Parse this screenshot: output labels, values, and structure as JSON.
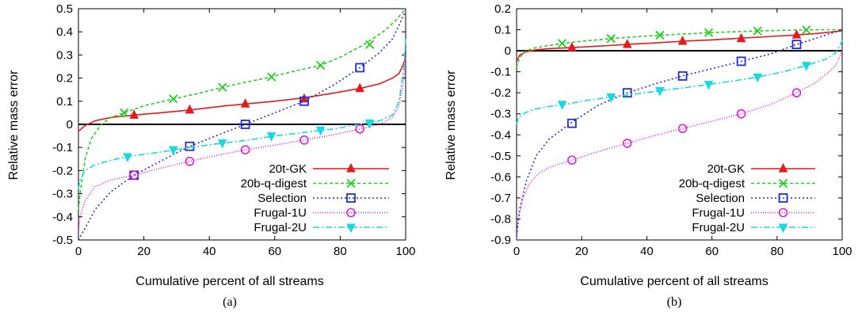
{
  "chart_data": [
    {
      "type": "line",
      "caption": "(a)",
      "xlabel": "Cumulative percent of all streams",
      "ylabel": "Relative mass error",
      "xlim": [
        0,
        100
      ],
      "ylim": [
        -0.5,
        0.5
      ],
      "xticks": [
        0,
        20,
        40,
        60,
        80,
        100
      ],
      "yticks": [
        -0.5,
        -0.4,
        -0.3,
        -0.2,
        -0.1,
        0,
        0.1,
        0.2,
        0.3,
        0.4,
        0.5
      ],
      "ytick_labels": [
        "-0.5",
        "-0.4",
        "-0.3",
        "-0.2",
        "-0.1",
        "0",
        "0.1",
        "0.2",
        "0.3",
        "0.4",
        "0.5"
      ],
      "zero_line": true,
      "legend_position": "bottom-right",
      "series": [
        {
          "name": "20t-GK",
          "color": "#e41a1c",
          "dash": "",
          "marker": "triangle-up",
          "x": [
            0,
            2,
            5,
            10,
            17,
            25,
            34,
            45,
            51,
            60,
            69,
            78,
            86,
            92,
            96,
            98,
            99.3,
            100
          ],
          "y": [
            -0.03,
            -0.005,
            0.015,
            0.03,
            0.04,
            0.05,
            0.062,
            0.08,
            0.088,
            0.1,
            0.115,
            0.135,
            0.155,
            0.175,
            0.2,
            0.22,
            0.26,
            0.29
          ],
          "marker_x": [
            17,
            34,
            51,
            69,
            86
          ],
          "marker_y": [
            0.04,
            0.062,
            0.088,
            0.11,
            0.155
          ]
        },
        {
          "name": "20b-q-digest",
          "color": "#1fd11f",
          "dash": "4,3",
          "marker": "x",
          "x": [
            0,
            0.5,
            2,
            4,
            7,
            10,
            14,
            20,
            29,
            37,
            44,
            52,
            59,
            66,
            74,
            80,
            86,
            90,
            94,
            97,
            100
          ],
          "y": [
            -0.37,
            -0.3,
            -0.15,
            -0.06,
            0.0,
            0.03,
            0.05,
            0.08,
            0.11,
            0.135,
            0.16,
            0.185,
            0.205,
            0.23,
            0.255,
            0.29,
            0.335,
            0.37,
            0.41,
            0.45,
            0.5
          ],
          "marker_x": [
            14,
            29,
            44,
            59,
            74,
            89
          ],
          "marker_y": [
            0.05,
            0.11,
            0.16,
            0.205,
            0.255,
            0.345
          ]
        },
        {
          "name": "Selection",
          "color": "#1f2fd1",
          "dash": "2,3",
          "marker": "square",
          "x": [
            0,
            2,
            5,
            10,
            17,
            25,
            34,
            42,
            51,
            60,
            69,
            78,
            86,
            92,
            96,
            100
          ],
          "y": [
            -0.5,
            -0.45,
            -0.37,
            -0.29,
            -0.22,
            -0.16,
            -0.095,
            -0.05,
            0.0,
            0.05,
            0.1,
            0.17,
            0.245,
            0.31,
            0.37,
            0.49
          ],
          "marker_x": [
            17,
            34,
            51,
            69,
            86
          ],
          "marker_y": [
            -0.22,
            -0.095,
            0.0,
            0.1,
            0.245
          ]
        },
        {
          "name": "Frugal-1U",
          "color": "#e01fe0",
          "dash": "1,2",
          "marker": "circle",
          "x": [
            0,
            0.5,
            2,
            5,
            10,
            17,
            25,
            34,
            42,
            51,
            60,
            69,
            78,
            86,
            92,
            96,
            98,
            99.5,
            100
          ],
          "y": [
            -0.47,
            -0.4,
            -0.33,
            -0.27,
            -0.24,
            -0.22,
            -0.19,
            -0.16,
            -0.135,
            -0.11,
            -0.09,
            -0.068,
            -0.045,
            -0.02,
            0.0,
            0.03,
            0.08,
            0.2,
            0.3
          ],
          "marker_x": [
            17,
            34,
            51,
            69,
            86
          ],
          "marker_y": [
            -0.22,
            -0.16,
            -0.11,
            -0.068,
            -0.02
          ],
          "legend_label": "Frugal-1U"
        },
        {
          "name": "Frugal-2U",
          "color": "#18d8e0",
          "dash": "8,3,2,3",
          "marker": "triangle-down",
          "x": [
            0,
            0.5,
            2,
            5,
            10,
            15,
            25,
            34,
            42,
            51,
            60,
            69,
            78,
            86,
            92,
            96,
            98,
            99.5,
            100
          ],
          "y": [
            -0.28,
            -0.24,
            -0.2,
            -0.175,
            -0.155,
            -0.14,
            -0.12,
            -0.1,
            -0.085,
            -0.07,
            -0.05,
            -0.035,
            -0.02,
            0.0,
            0.015,
            0.04,
            0.1,
            0.25,
            0.37
          ],
          "marker_x": [
            15,
            29,
            44,
            59,
            74,
            89
          ],
          "marker_y": [
            -0.14,
            -0.11,
            -0.08,
            -0.05,
            -0.025,
            0.005
          ]
        }
      ]
    },
    {
      "type": "line",
      "caption": "(b)",
      "xlabel": "Cumulative percent of all streams",
      "ylabel": "Relative mass error",
      "xlim": [
        0,
        100
      ],
      "ylim": [
        -0.9,
        0.2
      ],
      "xticks": [
        0,
        20,
        40,
        60,
        80,
        100
      ],
      "yticks": [
        -0.9,
        -0.8,
        -0.7,
        -0.6,
        -0.5,
        -0.4,
        -0.3,
        -0.2,
        -0.1,
        0,
        0.1,
        0.2
      ],
      "ytick_labels": [
        "-0.9",
        "-0.8",
        "-0.7",
        "-0.6",
        "-0.5",
        "-0.4",
        "-0.3",
        "-0.2",
        "-0.1",
        "0",
        "0.1",
        "0.2"
      ],
      "zero_line": true,
      "legend_position": "bottom-right",
      "series": [
        {
          "name": "20t-GK",
          "color": "#e41a1c",
          "dash": "",
          "marker": "triangle-up",
          "x": [
            0,
            1,
            3,
            6,
            10,
            17,
            25,
            34,
            42,
            51,
            60,
            69,
            78,
            86,
            92,
            96,
            100
          ],
          "y": [
            -0.05,
            -0.02,
            -0.005,
            0.005,
            0.01,
            0.015,
            0.022,
            0.03,
            0.037,
            0.045,
            0.052,
            0.06,
            0.068,
            0.075,
            0.082,
            0.088,
            0.095
          ],
          "marker_x": [
            17,
            34,
            51,
            69,
            86
          ],
          "marker_y": [
            0.015,
            0.03,
            0.045,
            0.058,
            0.075
          ]
        },
        {
          "name": "20b-q-digest",
          "color": "#1fd11f",
          "dash": "4,3",
          "marker": "x",
          "x": [
            0,
            1,
            3,
            6,
            10,
            14,
            20,
            29,
            37,
            44,
            52,
            59,
            66,
            74,
            82,
            89,
            95,
            100
          ],
          "y": [
            -0.08,
            -0.03,
            0.0,
            0.015,
            0.025,
            0.035,
            0.045,
            0.058,
            0.067,
            0.074,
            0.08,
            0.086,
            0.09,
            0.094,
            0.097,
            0.099,
            0.1,
            0.1
          ],
          "marker_x": [
            14,
            29,
            44,
            59,
            74,
            89
          ],
          "marker_y": [
            0.035,
            0.058,
            0.074,
            0.086,
            0.094,
            0.099
          ]
        },
        {
          "name": "Selection",
          "color": "#1f2fd1",
          "dash": "2,3",
          "marker": "square",
          "x": [
            0,
            1,
            3,
            6,
            10,
            17,
            25,
            34,
            42,
            51,
            60,
            69,
            78,
            86,
            92,
            96,
            100
          ],
          "y": [
            -0.88,
            -0.75,
            -0.62,
            -0.5,
            -0.42,
            -0.34,
            -0.26,
            -0.2,
            -0.16,
            -0.12,
            -0.085,
            -0.05,
            -0.015,
            0.03,
            0.06,
            0.08,
            0.1
          ],
          "marker_x": [
            17,
            34,
            51,
            69,
            86
          ],
          "marker_y": [
            -0.345,
            -0.2,
            -0.12,
            -0.05,
            0.03
          ]
        },
        {
          "name": "Frugal-1U",
          "color": "#e01fe0",
          "dash": "1,2",
          "marker": "circle",
          "x": [
            0,
            0.5,
            2,
            4,
            7,
            10,
            17,
            25,
            34,
            42,
            51,
            60,
            69,
            78,
            86,
            92,
            96,
            98,
            99.5,
            100
          ],
          "y": [
            -0.9,
            -0.8,
            -0.7,
            -0.63,
            -0.58,
            -0.555,
            -0.52,
            -0.48,
            -0.44,
            -0.405,
            -0.37,
            -0.335,
            -0.3,
            -0.255,
            -0.2,
            -0.15,
            -0.1,
            -0.07,
            -0.02,
            0.0
          ],
          "marker_x": [
            17,
            34,
            51,
            69,
            86
          ],
          "marker_y": [
            -0.52,
            -0.44,
            -0.37,
            -0.3,
            -0.2
          ]
        },
        {
          "name": "Frugal-2U",
          "color": "#18d8e0",
          "dash": "8,3,2,3",
          "marker": "triangle-down",
          "x": [
            0,
            0.5,
            2,
            5,
            10,
            15,
            22,
            29,
            37,
            44,
            52,
            59,
            66,
            74,
            82,
            89,
            95,
            98,
            99.5,
            100
          ],
          "y": [
            -0.35,
            -0.32,
            -0.3,
            -0.28,
            -0.265,
            -0.255,
            -0.235,
            -0.22,
            -0.205,
            -0.19,
            -0.175,
            -0.16,
            -0.145,
            -0.125,
            -0.1,
            -0.07,
            -0.04,
            -0.01,
            0.03,
            0.05
          ],
          "marker_x": [
            14,
            29,
            44,
            59,
            74,
            89
          ],
          "marker_y": [
            -0.255,
            -0.22,
            -0.19,
            -0.16,
            -0.125,
            -0.07
          ]
        }
      ]
    }
  ]
}
